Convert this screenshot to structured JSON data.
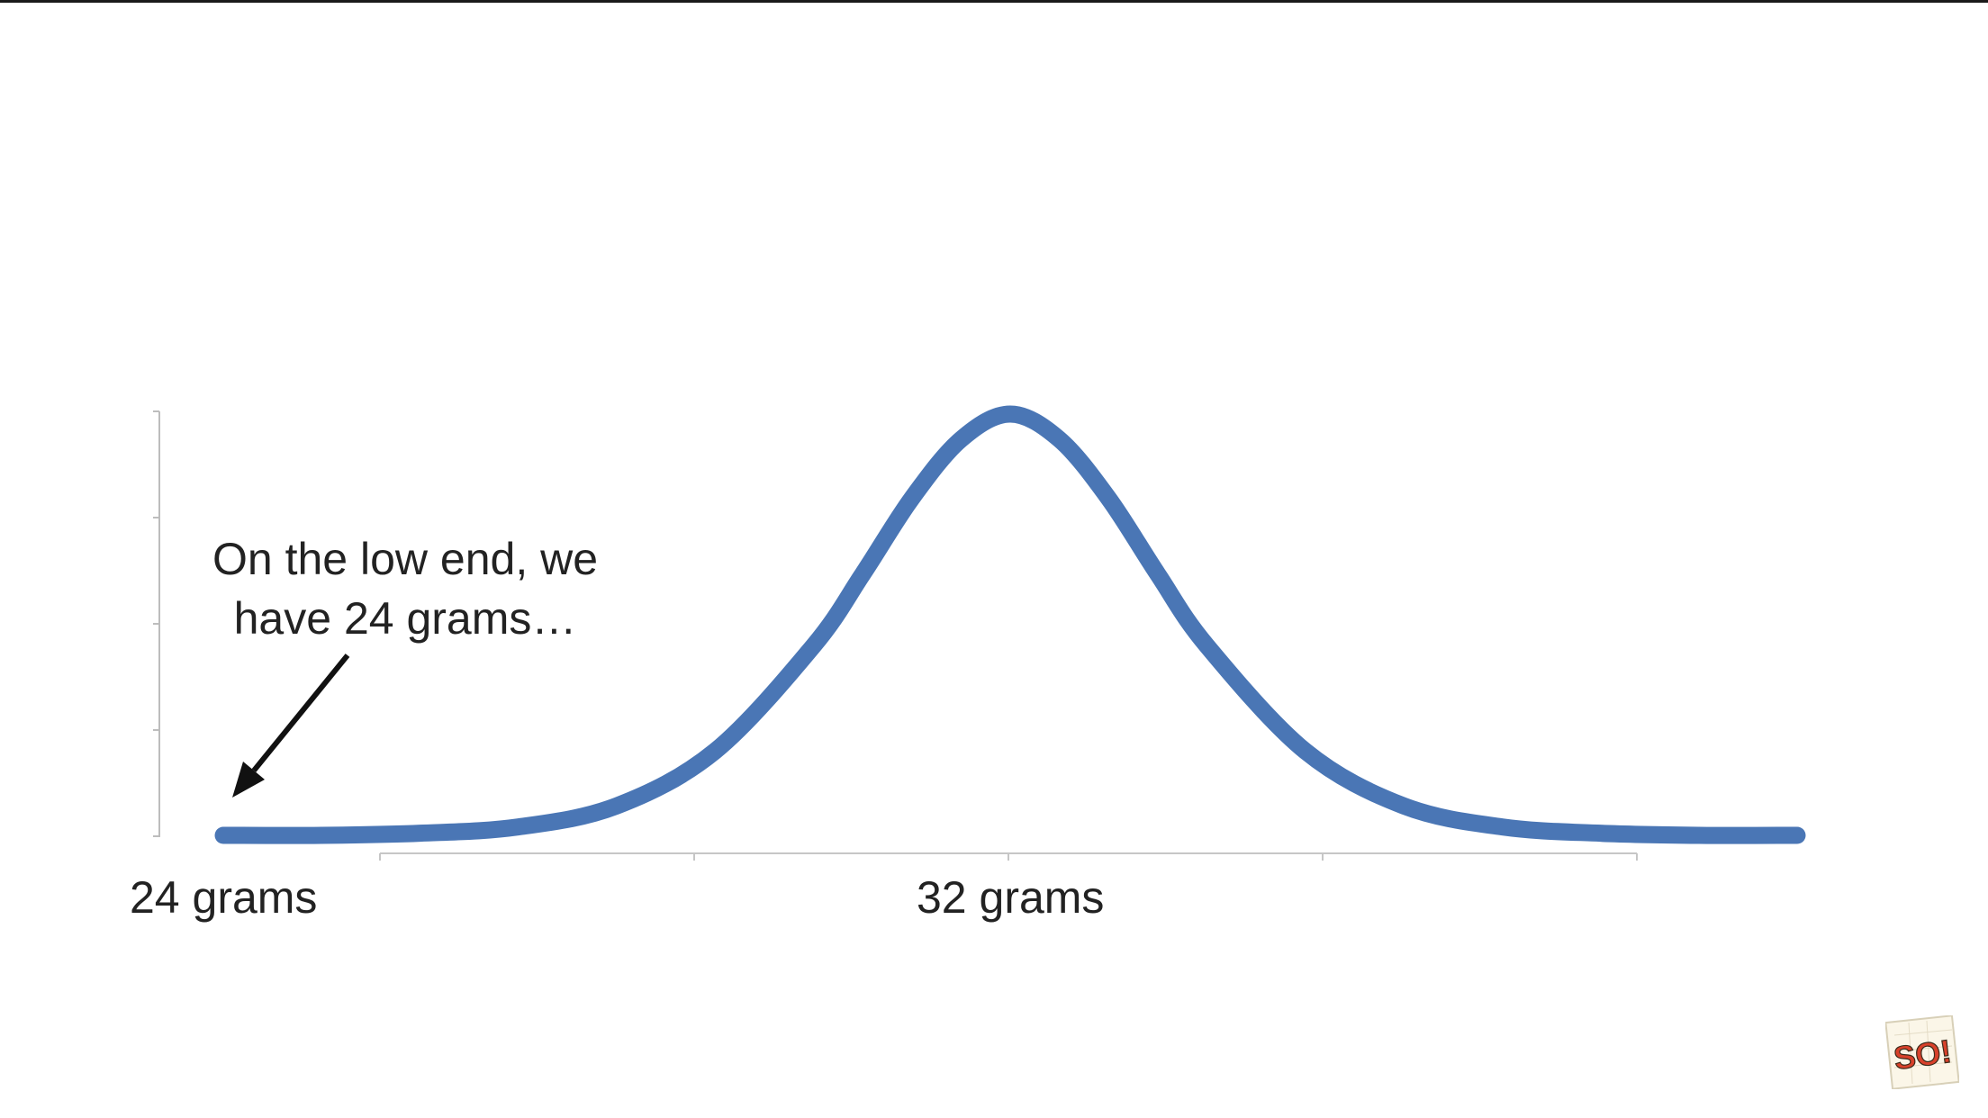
{
  "chart_data": {
    "type": "line",
    "series": [
      {
        "x": [
          24,
          25,
          26,
          27,
          28,
          29,
          30,
          30.5,
          31,
          31.5,
          32,
          32.5,
          33,
          33.5,
          34,
          35,
          36,
          37,
          38,
          39,
          40
        ],
        "values": [
          0.0,
          0.0,
          0.005,
          0.02,
          0.07,
          0.2,
          0.45,
          0.62,
          0.8,
          0.94,
          1.0,
          0.94,
          0.8,
          0.62,
          0.45,
          0.2,
          0.07,
          0.02,
          0.005,
          0.0,
          0.0
        ]
      }
    ],
    "xlim": [
      24,
      40
    ],
    "ylim": [
      0,
      1
    ],
    "tick_labels": [
      {
        "x": 24,
        "label": "24 grams"
      },
      {
        "x": 32,
        "label": "32 grams"
      }
    ],
    "annotation": {
      "text": "On the low end, we\nhave 24 grams…",
      "points_to_x": 24
    },
    "line_color": "#4a76b5",
    "grid": false,
    "legend": "none"
  },
  "logo": {
    "icon": "so-logo-icon",
    "text": "SO!"
  }
}
